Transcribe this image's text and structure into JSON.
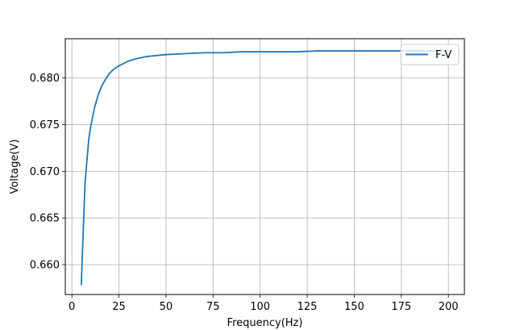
{
  "chart_data": {
    "type": "line",
    "title": "",
    "xlabel": "Frequency(Hz)",
    "ylabel": "Voltage(V)",
    "xlim": [
      -3.5,
      208.5
    ],
    "ylim": [
      0.6568,
      0.6842
    ],
    "xticks": [
      0,
      25,
      50,
      75,
      100,
      125,
      150,
      175,
      200
    ],
    "xtick_labels": [
      "0",
      "25",
      "50",
      "75",
      "100",
      "125",
      "150",
      "175",
      "200"
    ],
    "yticks": [
      0.66,
      0.665,
      0.67,
      0.675,
      0.68
    ],
    "ytick_labels": [
      "0.660",
      "0.665",
      "0.670",
      "0.675",
      "0.680"
    ],
    "grid": true,
    "legend": {
      "placement": "top-right"
    },
    "series": [
      {
        "name": "F-V",
        "color": "#1f77b4",
        "x": [
          5,
          6,
          7,
          8,
          9,
          10,
          12,
          14,
          16,
          18,
          20,
          22,
          25,
          28,
          30,
          35,
          40,
          45,
          50,
          60,
          70,
          80,
          90,
          100,
          110,
          120,
          130,
          140,
          150,
          160,
          170,
          180,
          190,
          200
        ],
        "y": [
          0.6578,
          0.6635,
          0.6688,
          0.6712,
          0.6735,
          0.6748,
          0.6768,
          0.6782,
          0.6792,
          0.6799,
          0.6805,
          0.6809,
          0.6813,
          0.6816,
          0.6818,
          0.6821,
          0.6823,
          0.6824,
          0.6825,
          0.6826,
          0.6827,
          0.6827,
          0.6828,
          0.6828,
          0.6828,
          0.6828,
          0.6829,
          0.6829,
          0.6829,
          0.6829,
          0.6829,
          0.6829,
          0.6829,
          0.6829
        ]
      }
    ]
  }
}
